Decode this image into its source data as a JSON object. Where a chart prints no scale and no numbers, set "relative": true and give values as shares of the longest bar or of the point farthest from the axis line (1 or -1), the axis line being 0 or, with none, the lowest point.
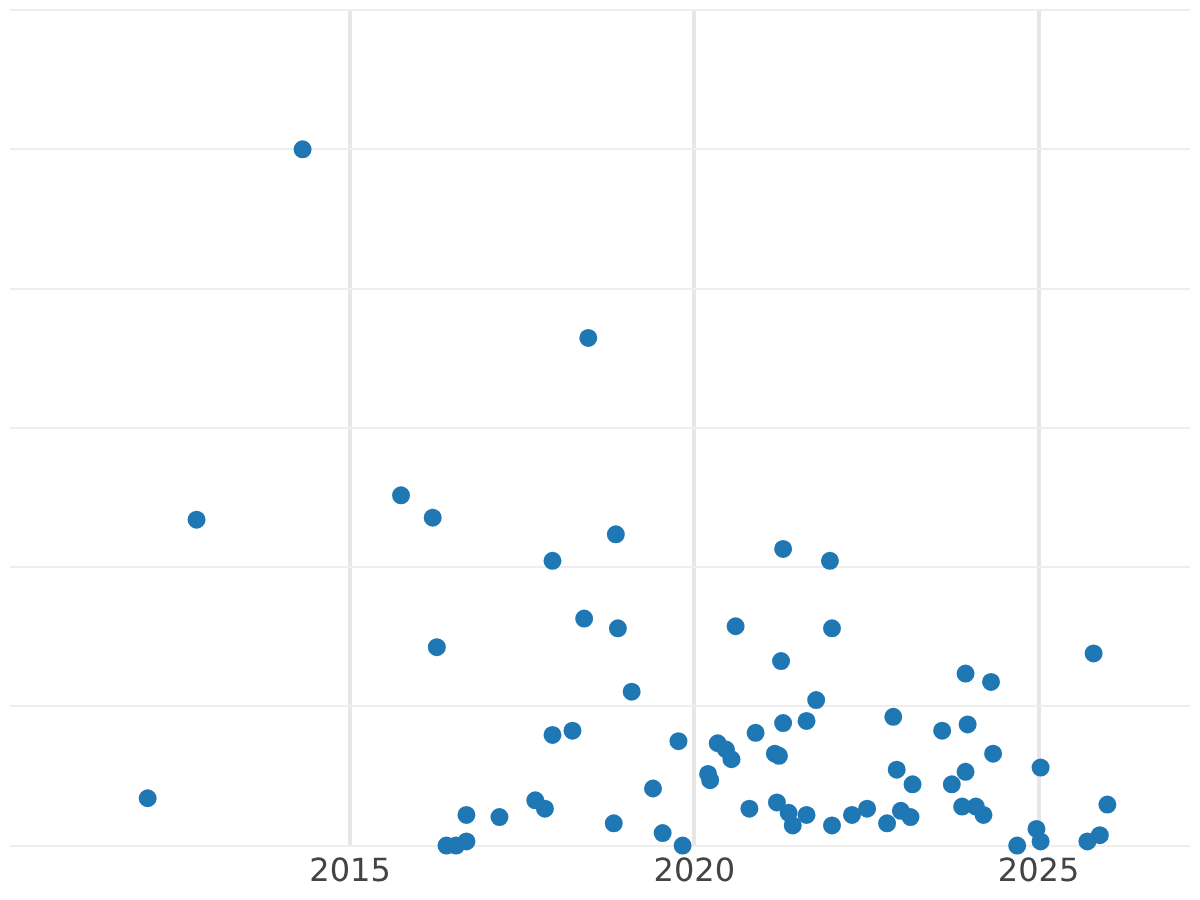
{
  "chart_data": {
    "type": "scatter",
    "relative": true,
    "color": "#1f77b4",
    "marker": "circle",
    "grid": true,
    "xlim": [
      2010.06,
      2027.2
    ],
    "xticks": [
      2015,
      2020,
      2025
    ],
    "x": [
      2012.06,
      2012.77,
      2014.31,
      2015.74,
      2016.2,
      2016.26,
      2016.4,
      2016.54,
      2016.69,
      2016.69,
      2017.17,
      2017.69,
      2017.83,
      2017.94,
      2017.94,
      2018.23,
      2018.4,
      2018.46,
      2018.83,
      2018.86,
      2018.89,
      2019.09,
      2019.4,
      2019.54,
      2019.77,
      2019.83,
      2020.2,
      2020.23,
      2020.34,
      2020.46,
      2020.54,
      2020.6,
      2020.8,
      2020.89,
      2021.17,
      2021.2,
      2021.23,
      2021.26,
      2021.29,
      2021.29,
      2021.37,
      2021.43,
      2021.63,
      2021.63,
      2021.77,
      2021.97,
      2022.0,
      2022.0,
      2022.29,
      2022.51,
      2022.8,
      2022.89,
      2022.94,
      2023.0,
      2023.14,
      2023.17,
      2023.6,
      2023.74,
      2023.89,
      2023.94,
      2023.94,
      2023.97,
      2024.09,
      2024.2,
      2024.31,
      2024.34,
      2024.69,
      2024.97,
      2025.03,
      2025.03,
      2025.71,
      2025.8,
      2025.89,
      2026.0
    ],
    "values": [
      0.068,
      0.468,
      1.0,
      0.503,
      0.471,
      0.285,
      0,
      0,
      0.044,
      0.006,
      0.041,
      0.065,
      0.053,
      0.159,
      0.409,
      0.165,
      0.326,
      0.729,
      0.032,
      0.447,
      0.312,
      0.221,
      0.082,
      0.018,
      0.15,
      0,
      0.103,
      0.094,
      0.147,
      0.138,
      0.124,
      0.315,
      0.053,
      0.162,
      0.132,
      0.062,
      0.129,
      0.265,
      0.426,
      0.176,
      0.047,
      0.029,
      0.179,
      0.044,
      0.209,
      0.409,
      0.312,
      0.029,
      0.044,
      0.053,
      0.032,
      0.185,
      0.109,
      0.05,
      0.041,
      0.088,
      0.165,
      0.088,
      0.056,
      0.247,
      0.106,
      0.174,
      0.056,
      0.044,
      0.235,
      0.132,
      0,
      0.024,
      0.112,
      0.006,
      0.006,
      0.276,
      0.015,
      0.059
    ]
  }
}
